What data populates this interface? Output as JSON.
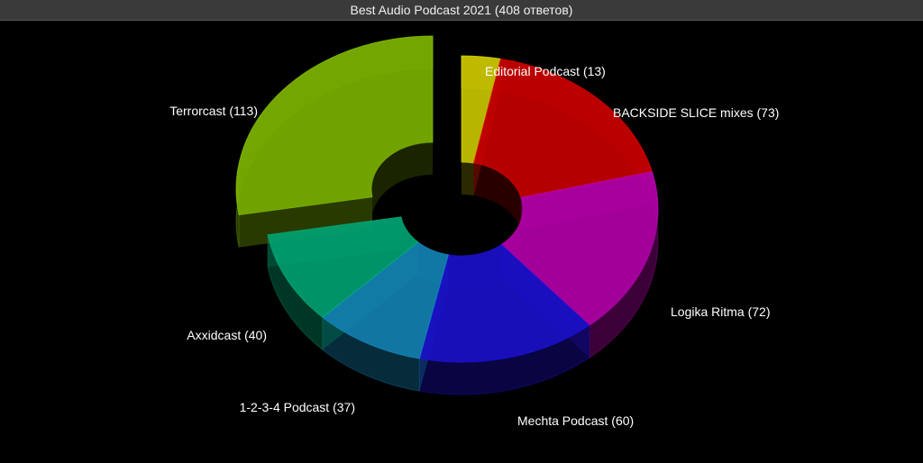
{
  "header": {
    "title": "Best Audio Podcast 2021 (408 ответов)"
  },
  "chart_data": {
    "type": "pie",
    "title": "Best Audio Podcast 2021 (408 ответов)",
    "total": 408,
    "slices": [
      {
        "label": "Editorial Podcast",
        "value": 13,
        "display": "Editorial Podcast (13)",
        "color": "#c8c400"
      },
      {
        "label": "BACKSIDE SLICE mixes",
        "value": 73,
        "display": "BACKSIDE SLICE mixes (73)",
        "color": "#c40000"
      },
      {
        "label": "Logika Ritma",
        "value": 72,
        "display": "Logika Ritma (72)",
        "color": "#b000a6"
      },
      {
        "label": "Mechta Podcast",
        "value": 60,
        "display": "Mechta Podcast (60)",
        "color": "#1a10c8"
      },
      {
        "label": "1-2-3-4 Podcast",
        "value": 37,
        "display": "1-2-3-4 Podcast (37)",
        "color": "#1280b0"
      },
      {
        "label": "Axxidcast",
        "value": 40,
        "display": "Axxidcast (40)",
        "color": "#00a070"
      },
      {
        "label": "Terrorcast",
        "value": 113,
        "display": "Terrorcast (113)",
        "color": "#7ab000"
      }
    ]
  }
}
